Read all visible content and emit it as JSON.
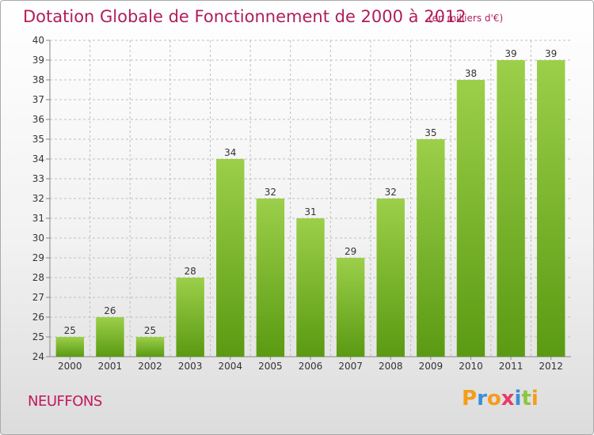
{
  "header": {
    "title": "Dotation Globale de Fonctionnement de 2000 à 2012",
    "unit": "(en milliers d'€)"
  },
  "footer": {
    "commune": "NEUFFONS",
    "brand_letters": [
      "P",
      "r",
      "o",
      "x",
      "i",
      "t",
      "i"
    ],
    "brand_colors": [
      "#f59c1a",
      "#3b8ed8",
      "#f59c1a",
      "#e63a6a",
      "#3b8ed8",
      "#8cc63f",
      "#f59c1a"
    ]
  },
  "colors": {
    "bar_top": "#9ccf4a",
    "bar_bottom": "#5a9a12",
    "grid": "#bfbfbf",
    "axis": "#888888"
  },
  "chart_data": {
    "type": "bar",
    "title": "Dotation Globale de Fonctionnement de 2000 à 2012",
    "subtitle": "(en milliers d'€)",
    "categories": [
      "2000",
      "2001",
      "2002",
      "2003",
      "2004",
      "2005",
      "2006",
      "2007",
      "2008",
      "2009",
      "2010",
      "2011",
      "2012"
    ],
    "values": [
      25,
      26,
      25,
      28,
      34,
      32,
      31,
      29,
      32,
      35,
      38,
      39,
      39
    ],
    "ylim": [
      24,
      40
    ],
    "yticks": [
      24,
      25,
      26,
      27,
      28,
      29,
      30,
      31,
      32,
      33,
      34,
      35,
      36,
      37,
      38,
      39,
      40
    ],
    "grid": true,
    "data_labels": true
  }
}
